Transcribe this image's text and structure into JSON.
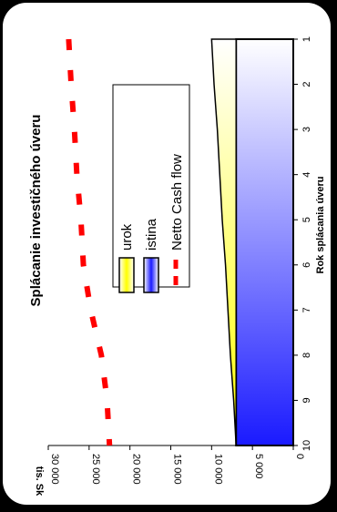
{
  "chart_data": {
    "type": "area",
    "title": "Splácanie investičného úveru",
    "xlabel": "Rok splácania úveru",
    "ylabel": "tis. Sk",
    "x": [
      1,
      2,
      3,
      4,
      5,
      6,
      7,
      8,
      9,
      10
    ],
    "x_tick_labels": [
      "1",
      "2",
      "3",
      "4",
      "5",
      "6",
      "7",
      "8",
      "9",
      "10"
    ],
    "y_tick_labels": [
      "0",
      "5 000",
      "10 000",
      "15 000",
      "20 000",
      "25 000",
      "30 000"
    ],
    "ylim": [
      0,
      30000
    ],
    "stacked": true,
    "series": [
      {
        "name": "istina",
        "kind": "area",
        "values": [
          7000,
          7000,
          7000,
          7000,
          7000,
          7000,
          7000,
          7000,
          7000,
          7000
        ],
        "color_start": "#ffffff",
        "color_end": "#1a1aff"
      },
      {
        "name": "urok",
        "kind": "area",
        "values": [
          3000,
          2700,
          2300,
          2000,
          1700,
          1300,
          1000,
          700,
          300,
          0
        ],
        "color_start": "#ffffff",
        "color_end": "#ffff00"
      },
      {
        "name": "Netto Cash flow",
        "kind": "line",
        "style": "dashed",
        "color": "#ff0000",
        "values": [
          27500,
          27200,
          26800,
          26500,
          26000,
          25700,
          24800,
          23500,
          22800,
          22500
        ]
      }
    ],
    "legend": {
      "position": "center",
      "entries": [
        "urok",
        "istina",
        "Netto Cash flow"
      ]
    }
  }
}
